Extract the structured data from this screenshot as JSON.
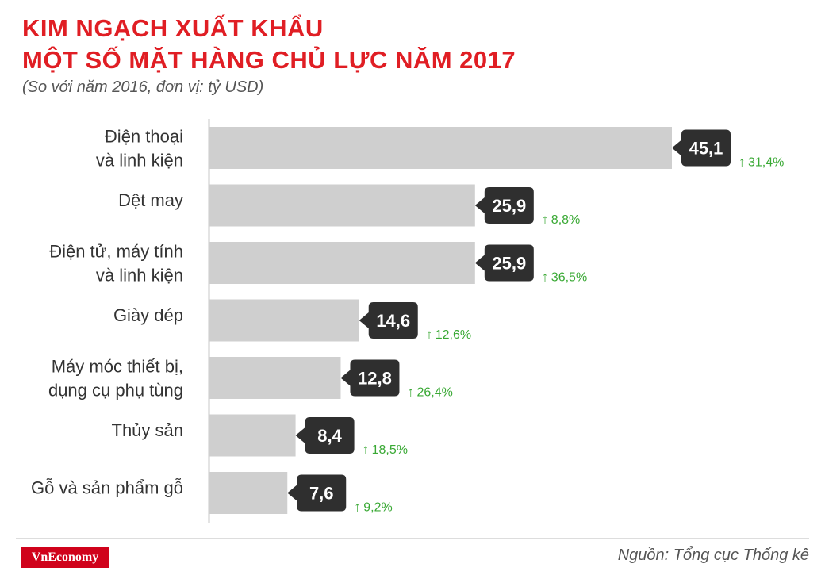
{
  "header": {
    "title_line1": "KIM NGẠCH XUẤT KHẨU",
    "title_line2": "MỘT SỐ MẶT HÀNG CHỦ LỰC NĂM 2017",
    "subtitle": "(So với năm 2016, đơn vị: tỷ USD)"
  },
  "footer": {
    "brand": "VnEconomy",
    "source": "Nguồn: Tổng cục Thống kê"
  },
  "colors": {
    "title": "#e01e24",
    "bar": "#cfcfcf",
    "label_box": "#2f2f2f",
    "growth": "#3aa935",
    "axis": "#c8c8c8"
  },
  "chart_data": {
    "type": "bar",
    "orientation": "horizontal",
    "title": "KIM NGẠCH XUẤT KHẨU MỘT SỐ MẶT HÀNG CHỦ LỰC NĂM 2017",
    "subtitle": "(So với năm 2016, đơn vị: tỷ USD)",
    "unit": "tỷ USD",
    "xlim": [
      0,
      45.1
    ],
    "categories": [
      [
        "Điện thoại",
        "và linh kiện"
      ],
      [
        "Dệt may"
      ],
      [
        "Điện tử, máy tính",
        "và linh kiện"
      ],
      [
        "Giày dép"
      ],
      [
        "Máy móc thiết bị,",
        "dụng cụ phụ tùng"
      ],
      [
        "Thủy sản"
      ],
      [
        "Gỗ và sản phẩm gỗ"
      ]
    ],
    "values": [
      45.1,
      25.9,
      25.9,
      14.6,
      12.8,
      8.4,
      7.6
    ],
    "value_labels": [
      "45,1",
      "25,9",
      "25,9",
      "14,6",
      "12,8",
      "8,4",
      "7,6"
    ],
    "growth": [
      "31,4%",
      "8,8%",
      "36,5%",
      "12,6%",
      "26,4%",
      "18,5%",
      "9,2%"
    ],
    "growth_arrow": "↑"
  }
}
